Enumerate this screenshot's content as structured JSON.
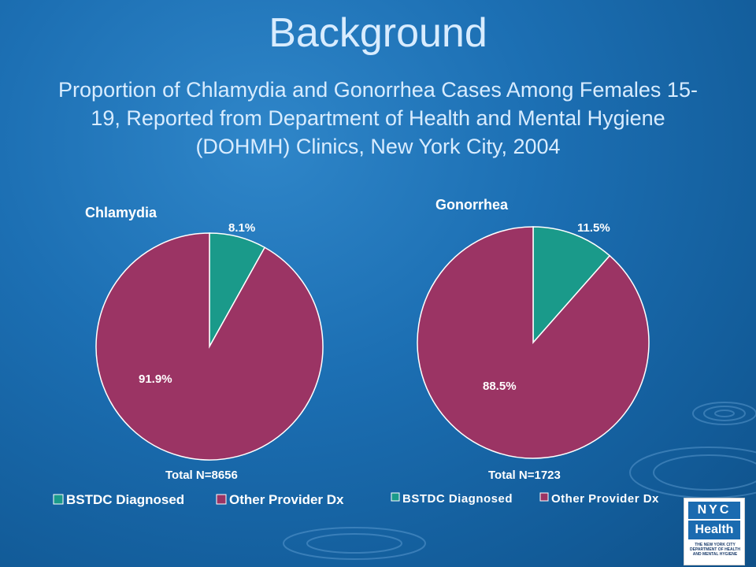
{
  "title": "Background",
  "subtitle": "Proportion of Chlamydia and Gonorrhea Cases Among Females 15-19, Reported from Department of Health and Mental Hygiene (DOHMH) Clinics, New York City, 2004",
  "colors": {
    "bstdc": "#1a9a8a",
    "other": "#9b3464",
    "text_dark": "#ffffff",
    "title_text": "#d8ecff"
  },
  "logo": {
    "line1": "NYC",
    "line2": "Health",
    "small": "THE NEW YORK CITY DEPARTMENT OF HEALTH AND MENTAL HYGIENE"
  },
  "chart_data": [
    {
      "type": "pie",
      "title": "Chlamydia",
      "categories": [
        "BSTDC Diagnosed",
        "Other Provider Dx"
      ],
      "values": [
        8.1,
        91.9
      ],
      "labels": [
        "8.1%",
        "91.9%"
      ],
      "total_label": "Total N=8656",
      "legend": [
        "BSTDC Diagnosed",
        "Other Provider Dx"
      ],
      "legend_position": "bottom"
    },
    {
      "type": "pie",
      "title": "Gonorrhea",
      "categories": [
        "BSTDC Diagnosed",
        "Other Provider Dx"
      ],
      "values": [
        11.5,
        88.5
      ],
      "labels": [
        "11.5%",
        "88.5%"
      ],
      "total_label": "Total N=1723",
      "legend": [
        "BSTDC Diagnosed",
        "Other Provider Dx"
      ],
      "legend_position": "bottom"
    }
  ]
}
